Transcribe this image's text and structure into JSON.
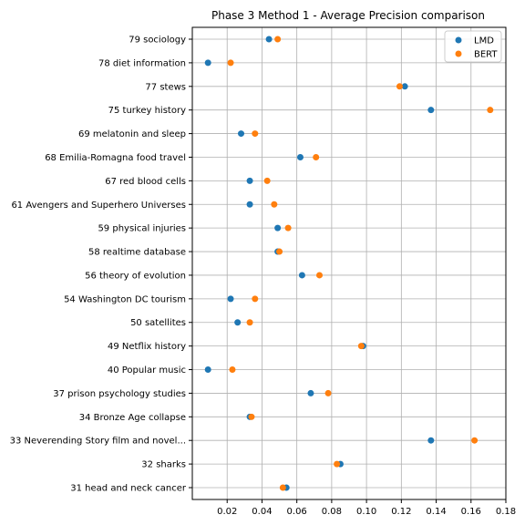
{
  "chart_data": {
    "type": "scatter",
    "title": "Phase 3 Method 1 - Average Precision comparison",
    "xlabel": "",
    "ylabel": "",
    "xlim": [
      0.0,
      0.18
    ],
    "xticks": [
      0.02,
      0.04,
      0.06,
      0.08,
      0.1,
      0.12,
      0.14,
      0.16,
      0.18
    ],
    "xtick_labels": [
      "0.02",
      "0.04",
      "0.06",
      "0.08",
      "0.10",
      "0.12",
      "0.14",
      "0.16",
      "0.18"
    ],
    "grid": true,
    "legend_position": "top-right",
    "categories": [
      "79 sociology",
      "78 diet information",
      "77 stews",
      "75 turkey history",
      "69 melatonin and sleep",
      "68 Emilia-Romagna food travel",
      "67 red blood cells",
      "61 Avengers and Superhero Universes",
      "59 physical injuries",
      "58 realtime database",
      "56 theory of evolution",
      "54 Washington DC tourism",
      "50 satellites",
      "49 Netflix history",
      "40 Popular music",
      "37 prison psychology studies",
      "34 Bronze Age collapse",
      "33 Neverending Story film and novel...",
      "32 sharks",
      "31 head and neck cancer"
    ],
    "series": [
      {
        "name": "LMD",
        "color": "#1f77b4",
        "values": [
          0.044,
          0.009,
          0.122,
          0.137,
          0.028,
          0.062,
          0.033,
          0.033,
          0.049,
          0.049,
          0.063,
          0.022,
          0.026,
          0.098,
          0.009,
          0.068,
          0.033,
          0.137,
          0.085,
          0.054
        ]
      },
      {
        "name": "BERT",
        "color": "#ff7f0e",
        "values": [
          0.049,
          0.022,
          0.119,
          0.171,
          0.036,
          0.071,
          0.043,
          0.047,
          0.055,
          0.05,
          0.073,
          0.036,
          0.033,
          0.097,
          0.023,
          0.078,
          0.034,
          0.162,
          0.083,
          0.052
        ]
      }
    ]
  }
}
